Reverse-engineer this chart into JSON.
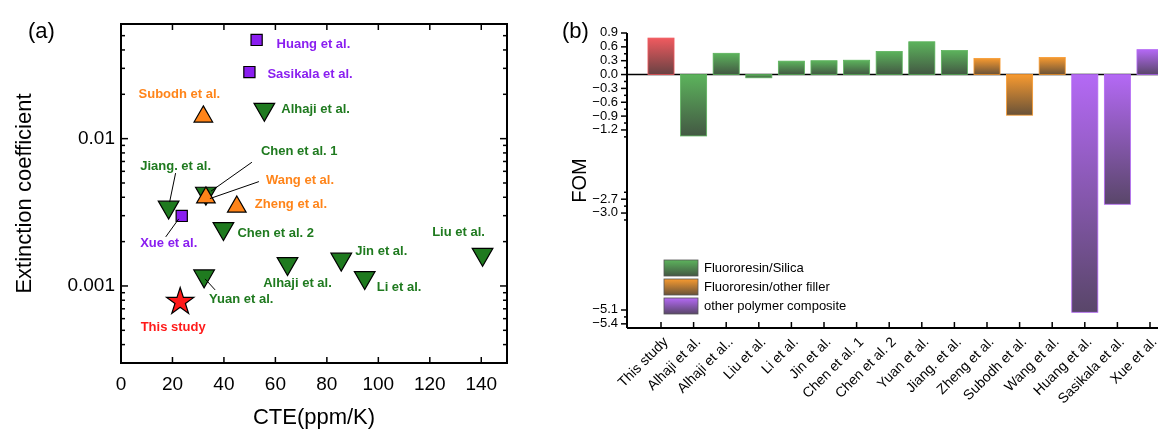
{
  "chart_data": [
    {
      "type": "scatter",
      "title": "(a)",
      "xlabel": "CTE(ppm/K)",
      "ylabel": "Extinction coefficient",
      "log": "y",
      "xlim": [
        0,
        150
      ],
      "xticks": [
        0,
        20,
        40,
        60,
        80,
        100,
        120,
        140
      ],
      "ylim": [
        0.0003,
        0.06
      ],
      "yticks": [
        {
          "value": 0.0003,
          "label": null
        },
        {
          "value": 0.0004,
          "label": null
        },
        {
          "value": 0.0005,
          "label": null
        },
        {
          "value": 0.0006,
          "label": null
        },
        {
          "value": 0.0007,
          "label": null
        },
        {
          "value": 0.0008,
          "label": null
        },
        {
          "value": 0.0009,
          "label": null
        },
        0.001,
        {
          "value": 0.002,
          "label": null
        },
        {
          "value": 0.003,
          "label": null
        },
        {
          "value": 0.004,
          "label": null
        },
        {
          "value": 0.005,
          "label": null
        },
        {
          "value": 0.006,
          "label": null
        },
        {
          "value": 0.007,
          "label": null
        },
        {
          "value": 0.008,
          "label": null
        },
        {
          "value": 0.009,
          "label": null
        },
        0.01,
        {
          "value": 0.02,
          "label": null
        },
        {
          "value": 0.03,
          "label": null
        },
        {
          "value": 0.04,
          "label": null
        },
        {
          "value": 0.05,
          "label": null
        },
        {
          "value": 0.06,
          "label": null
        }
      ],
      "series": [
        {
          "color": "#ff1a1a",
          "marker": "star",
          "x": [
            23
          ],
          "values": [
            0.00078
          ]
        },
        {
          "color": "#1f7a1f",
          "marker": "triangle-down",
          "x": [
            55.7,
            33,
            18.5,
            39.8,
            140.5,
            85.6,
            64.7,
            94.7,
            32.3
          ],
          "values": [
            0.0158,
            0.00426,
            0.00343,
            0.00245,
            0.00164,
            0.00152,
            0.00142,
            0.00114,
            0.00117
          ]
        },
        {
          "color": "#ff8419",
          "marker": "triangle",
          "x": [
            32,
            33,
            45
          ],
          "values": [
            0.0141,
            0.00398,
            0.00345
          ]
        },
        {
          "color": "#8a1ef0",
          "marker": "square",
          "x": [
            52.7,
            49.9,
            23.6
          ],
          "values": [
            0.0468,
            0.0283,
            0.00299
          ]
        }
      ],
      "annotations": [
        {
          "text": "This study",
          "x": 23,
          "y": 0.00078
        },
        {
          "text": "Alhaji et al.",
          "x": 55.7,
          "y": 0.0158
        },
        {
          "text": "Chen et al. 1",
          "x": 33,
          "y": 0.00426
        },
        {
          "text": "Jiang. et al.",
          "x": 18.5,
          "y": 0.00343
        },
        {
          "text": "Chen et al. 2",
          "x": 39.8,
          "y": 0.00245
        },
        {
          "text": "Liu et al.",
          "x": 140.5,
          "y": 0.00164
        },
        {
          "text": "Jin et al.",
          "x": 85.6,
          "y": 0.00152
        },
        {
          "text": "Alhaji et al.",
          "x": 64.7,
          "y": 0.00142
        },
        {
          "text": "Li et al.",
          "x": 94.7,
          "y": 0.00114
        },
        {
          "text": "Yuan et al.",
          "x": 32.3,
          "y": 0.00117
        },
        {
          "text": "Subodh et al.",
          "x": 32,
          "y": 0.0141
        },
        {
          "text": "Wang et al.",
          "x": 33,
          "y": 0.00398
        },
        {
          "text": "Zheng et al.",
          "x": 45,
          "y": 0.00345
        },
        {
          "text": "Huang et al.",
          "x": 52.7,
          "y": 0.0468
        },
        {
          "text": "Sasikala et al.",
          "x": 49.9,
          "y": 0.0283
        },
        {
          "text": "Xue et al.",
          "x": 23.6,
          "y": 0.00299
        }
      ]
    },
    {
      "type": "bar",
      "title": "(b)",
      "ylabel": "FOM",
      "legend": "bottom left",
      "ylim": [
        -5.49,
        0.9
      ],
      "categories": [
        "This study",
        "Alhaji et al.",
        "Alhaji et al..",
        "Liu et al.",
        "Li et al.",
        "Jin et al.",
        "Chen et al. 1",
        "Chen et al. 2",
        "Yuan et al.",
        "Jiang. et al.",
        "Zheng et al.",
        "Subodh et al.",
        "Wang et al.",
        "Huang et al.",
        "Sasikala et al.",
        "Xue et al."
      ],
      "yticks": [
        0.9,
        {
          "value": 0.75,
          "label": null
        },
        0.6,
        {
          "value": 0.45,
          "label": null
        },
        0.3,
        {
          "value": 0.15,
          "label": null
        },
        {
          "value": 0,
          "label": "0.0"
        },
        {
          "value": -0.15,
          "label": null
        },
        {
          "value": -0.3,
          "label": "−0.3"
        },
        {
          "value": -0.45,
          "label": null
        },
        {
          "value": -0.6,
          "label": "−0.6"
        },
        {
          "value": -0.75,
          "label": null
        },
        {
          "value": -0.9,
          "label": "−0.9"
        },
        {
          "value": -1.05,
          "label": null
        },
        {
          "value": -1.2,
          "label": "−1.2"
        },
        {
          "value": -1.35,
          "label": null
        },
        {
          "value": -2.55,
          "label": null
        },
        {
          "value": -2.7,
          "label": "−2.7"
        },
        {
          "value": -2.85,
          "label": null
        },
        {
          "value": -3.0,
          "label": "−3.0"
        },
        {
          "value": -3.15,
          "label": null
        },
        {
          "value": -5.1,
          "label": "−5.1"
        },
        {
          "value": -5.25,
          "label": null
        },
        {
          "value": -5.4,
          "label": "−5.4"
        }
      ],
      "series": [
        {
          "color": "#f05a5f",
          "values": [
            0.79,
            null,
            null,
            null,
            null,
            null,
            null,
            null,
            null,
            null,
            null,
            null,
            null,
            null,
            null,
            null
          ]
        },
        {
          "name": "Fluororesin/Silica",
          "color": "#5cb35c",
          "values": [
            null,
            -1.33,
            0.46,
            -0.07,
            0.29,
            0.3,
            0.31,
            0.5,
            0.71,
            0.52,
            null,
            null,
            null,
            null,
            null,
            null
          ]
        },
        {
          "name": "Fluororesin/other filler",
          "color": "#f79a30",
          "values": [
            null,
            null,
            null,
            null,
            null,
            null,
            null,
            null,
            null,
            null,
            0.35,
            -0.88,
            0.37,
            null,
            null,
            null
          ]
        },
        {
          "name": "other polymer composite",
          "color": "#b469f5",
          "values": [
            null,
            null,
            null,
            null,
            null,
            null,
            null,
            null,
            null,
            null,
            null,
            null,
            null,
            -5.15,
            -2.81,
            0.54
          ]
        }
      ]
    }
  ]
}
